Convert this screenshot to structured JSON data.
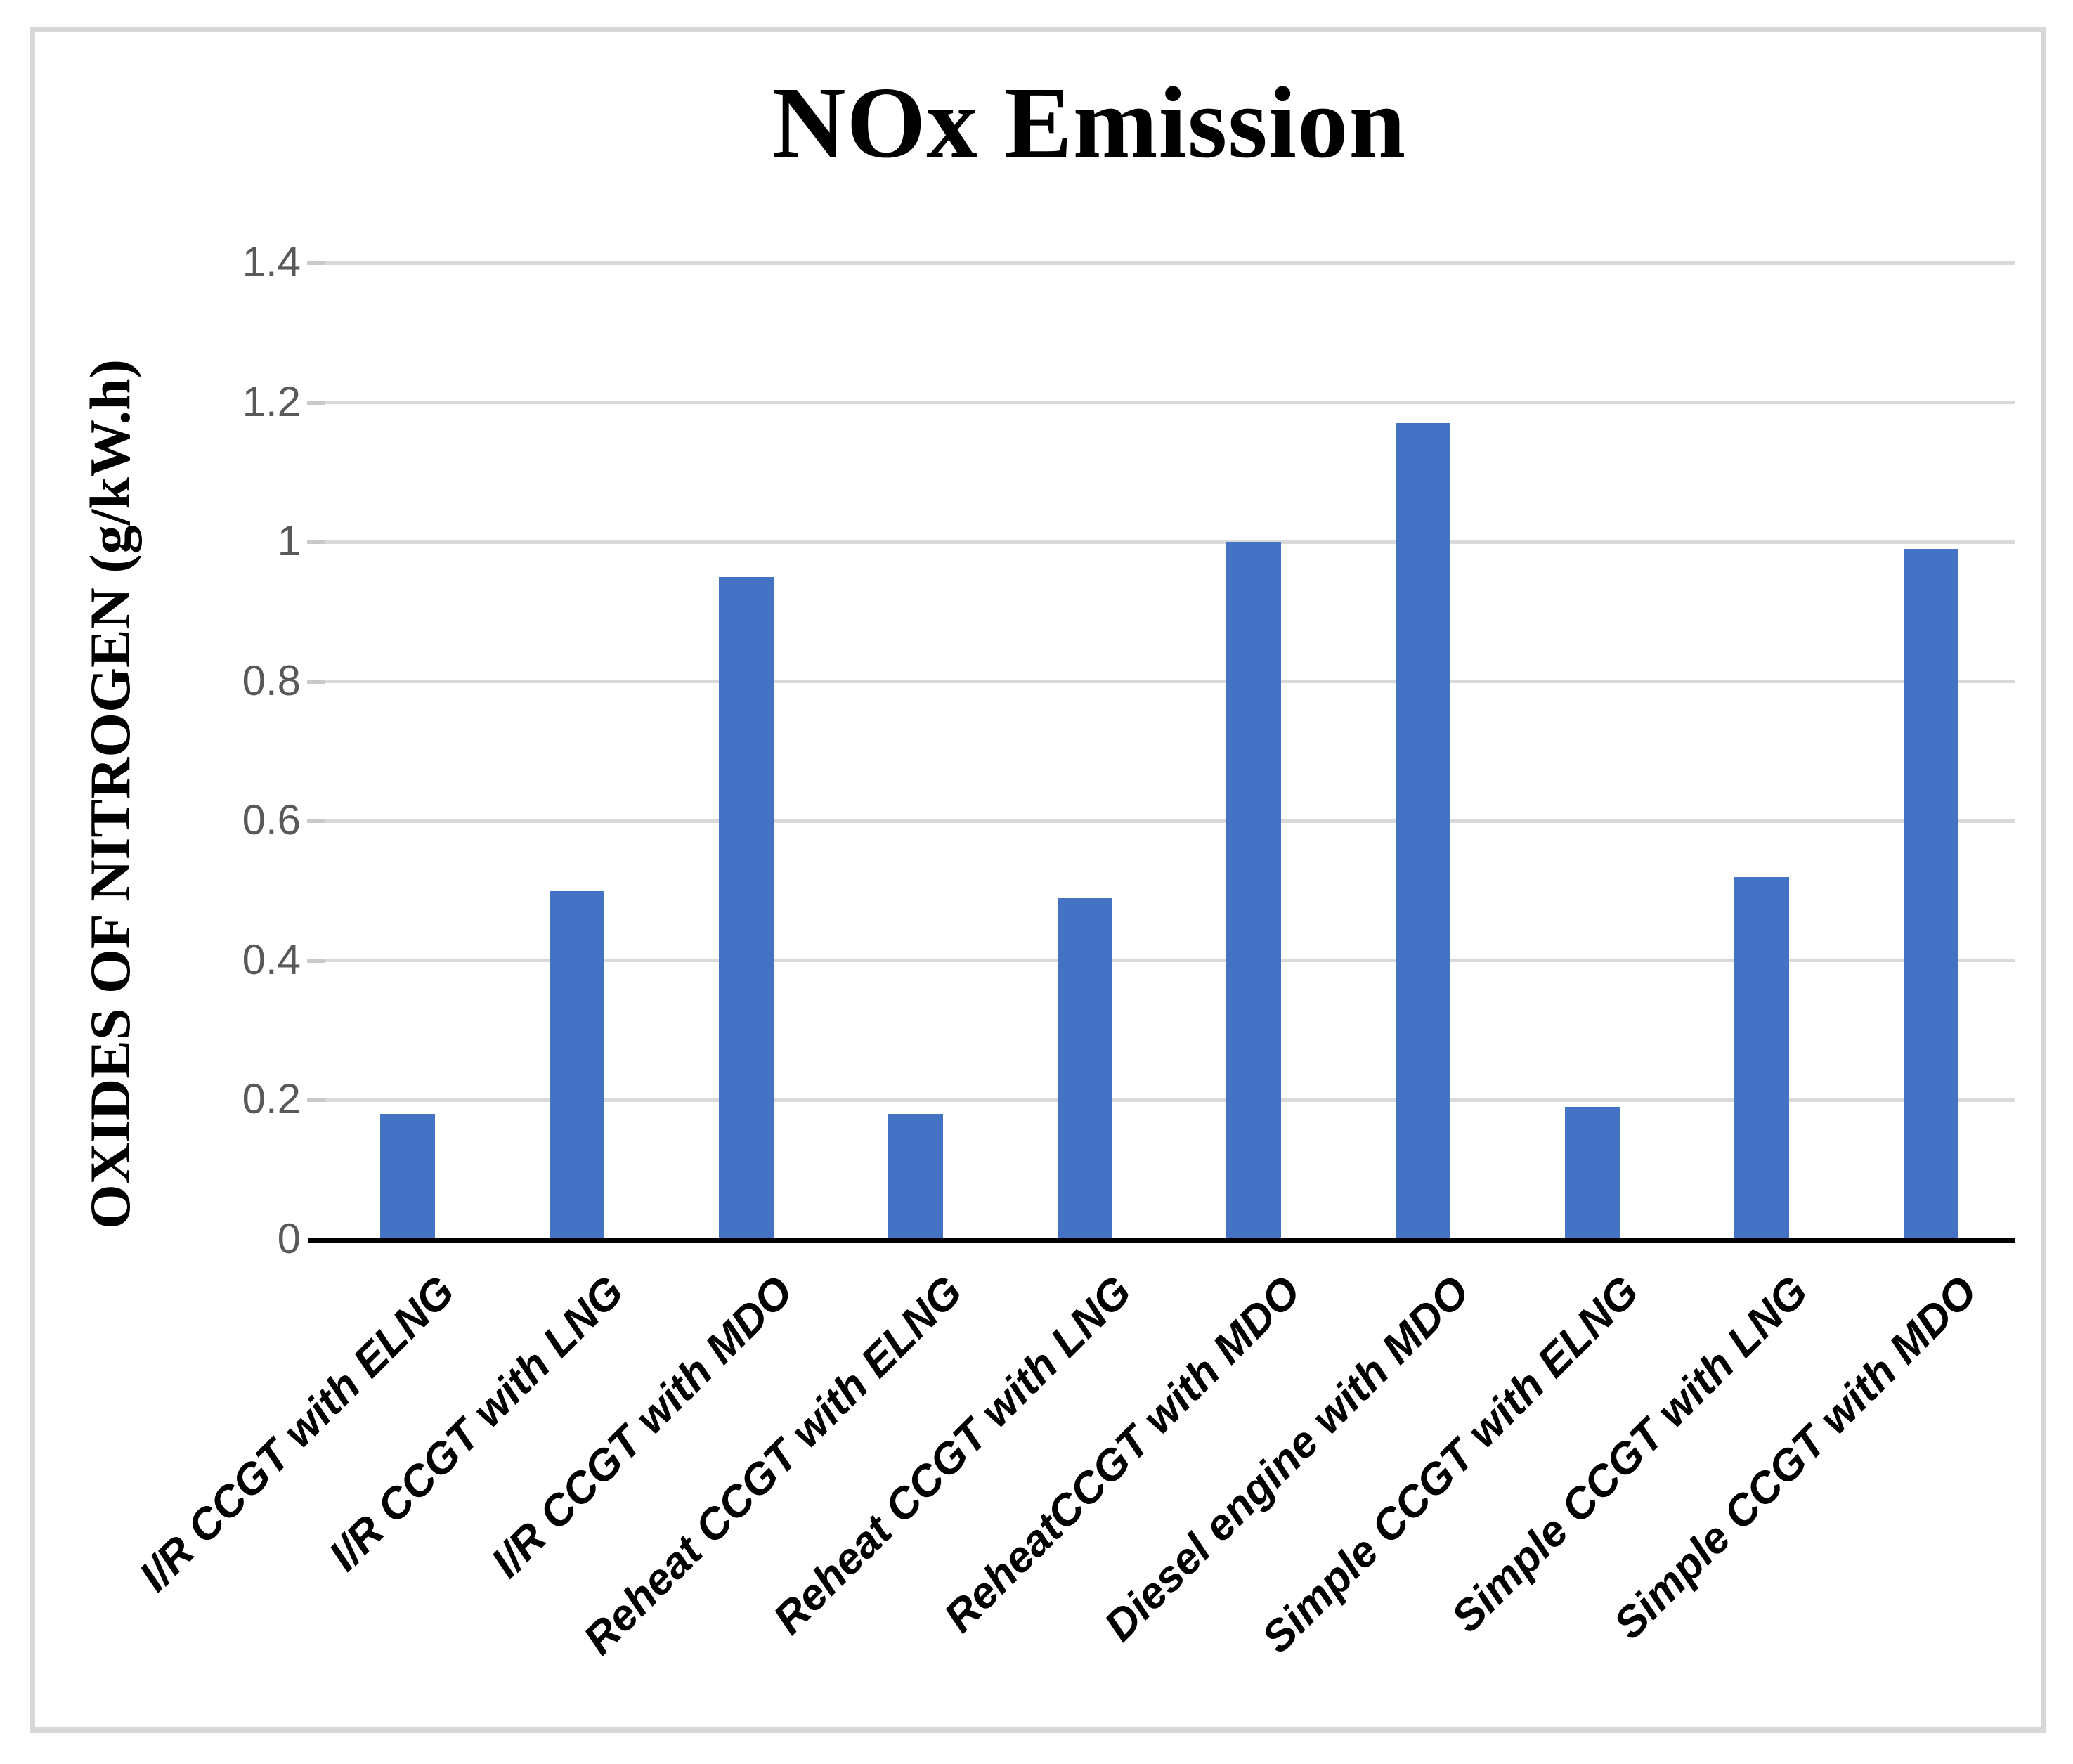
{
  "page": {
    "background": "#ffffff",
    "frame_border_color": "#d7d7d7"
  },
  "chart_data": {
    "type": "bar",
    "title": "NOx Emission",
    "xlabel": "",
    "ylabel": "OXIDES OF NITROGEN (g/kW.h)",
    "categories": [
      "I/R CCGT with ELNG",
      "I/R CCGT with LNG",
      "I/R CCGT with MDO",
      "Reheat CCGT with ELNG",
      "Reheat CCGT with LNG",
      "ReheatCCGT with MDO",
      "Diesel engine with MDO",
      "Simple CCGT with ELNG",
      "Simple CCGT with LNG",
      "Simple CCGT with MDO"
    ],
    "values": [
      0.18,
      0.5,
      0.95,
      0.18,
      0.49,
      1.0,
      1.17,
      0.19,
      0.52,
      0.99
    ],
    "ylim": [
      0,
      1.4
    ],
    "ytick_step": 0.2,
    "ytick_labels": [
      "0",
      "0.2",
      "0.4",
      "0.6",
      "0.8",
      "1",
      "1.2",
      "1.4"
    ],
    "grid": true,
    "legend_position": "none",
    "bar_color": "#4472C4",
    "gridline_color": "#d9d9d9",
    "tick_label_color": "#595959",
    "axis_line_color": "#000000",
    "category_label_rotation_deg": 45
  }
}
